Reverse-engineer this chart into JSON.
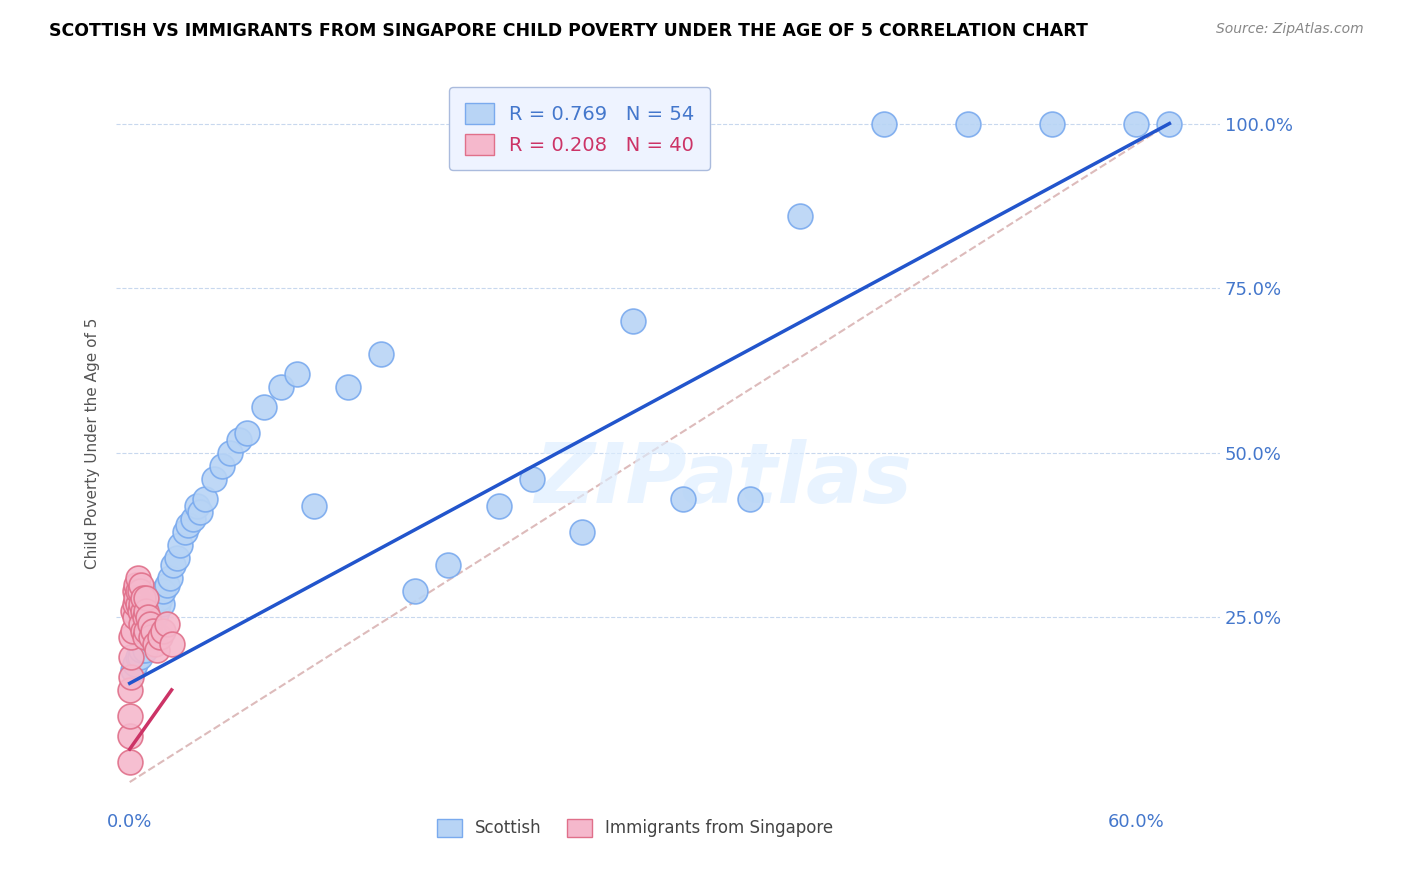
{
  "title": "SCOTTISH VS IMMIGRANTS FROM SINGAPORE CHILD POVERTY UNDER THE AGE OF 5 CORRELATION CHART",
  "source": "Source: ZipAtlas.com",
  "ylabel_label": "Child Poverty Under the Age of 5",
  "xlim": [
    -0.008,
    0.65
  ],
  "ylim": [
    -0.04,
    1.07
  ],
  "watermark": "ZIPatlas",
  "scatter_blue": {
    "label": "Scottish",
    "R": 0.769,
    "N": 54,
    "color": "#b8d4f5",
    "edge_color": "#7aaaee",
    "regression_color": "#2255cc",
    "x": [
      0.002,
      0.003,
      0.005,
      0.006,
      0.007,
      0.008,
      0.009,
      0.01,
      0.011,
      0.012,
      0.013,
      0.014,
      0.015,
      0.016,
      0.017,
      0.018,
      0.019,
      0.02,
      0.022,
      0.024,
      0.026,
      0.028,
      0.03,
      0.033,
      0.035,
      0.038,
      0.04,
      0.042,
      0.045,
      0.05,
      0.055,
      0.06,
      0.065,
      0.07,
      0.08,
      0.09,
      0.1,
      0.11,
      0.13,
      0.15,
      0.17,
      0.19,
      0.22,
      0.24,
      0.27,
      0.3,
      0.33,
      0.37,
      0.4,
      0.45,
      0.5,
      0.55,
      0.6,
      0.62
    ],
    "y": [
      0.17,
      0.18,
      0.19,
      0.19,
      0.2,
      0.21,
      0.2,
      0.22,
      0.22,
      0.23,
      0.24,
      0.23,
      0.25,
      0.26,
      0.27,
      0.28,
      0.27,
      0.29,
      0.3,
      0.31,
      0.33,
      0.34,
      0.36,
      0.38,
      0.39,
      0.4,
      0.42,
      0.41,
      0.43,
      0.46,
      0.48,
      0.5,
      0.52,
      0.53,
      0.57,
      0.6,
      0.62,
      0.42,
      0.6,
      0.65,
      0.29,
      0.33,
      0.42,
      0.46,
      0.38,
      0.7,
      0.43,
      0.43,
      0.86,
      1.0,
      1.0,
      1.0,
      1.0,
      1.0
    ]
  },
  "scatter_pink": {
    "label": "Immigrants from Singapore",
    "R": 0.208,
    "N": 40,
    "color": "#f5b8cc",
    "edge_color": "#e0708a",
    "regression_color": "#cc3366",
    "x": [
      0.0,
      0.0,
      0.0,
      0.0,
      0.001,
      0.001,
      0.001,
      0.002,
      0.002,
      0.003,
      0.003,
      0.003,
      0.004,
      0.004,
      0.005,
      0.005,
      0.005,
      0.006,
      0.006,
      0.007,
      0.007,
      0.007,
      0.008,
      0.008,
      0.008,
      0.009,
      0.009,
      0.01,
      0.01,
      0.01,
      0.011,
      0.012,
      0.013,
      0.014,
      0.015,
      0.016,
      0.018,
      0.02,
      0.022,
      0.025
    ],
    "y": [
      0.03,
      0.07,
      0.1,
      0.14,
      0.16,
      0.19,
      0.22,
      0.23,
      0.26,
      0.25,
      0.27,
      0.29,
      0.28,
      0.3,
      0.27,
      0.29,
      0.31,
      0.26,
      0.29,
      0.24,
      0.27,
      0.3,
      0.23,
      0.26,
      0.28,
      0.22,
      0.25,
      0.23,
      0.26,
      0.28,
      0.25,
      0.24,
      0.22,
      0.23,
      0.21,
      0.2,
      0.22,
      0.23,
      0.24,
      0.21
    ]
  },
  "diagonal_line_color": "#ddbbbb",
  "axis_color": "#4477cc",
  "legend_box_color": "#eef3ff",
  "legend_edge_color": "#aabbdd",
  "grid_color": "#c8d8ee",
  "reg_line_x0": 0.0,
  "reg_line_x1": 0.62,
  "reg_line_y0": 0.0,
  "reg_line_y1": 1.0
}
